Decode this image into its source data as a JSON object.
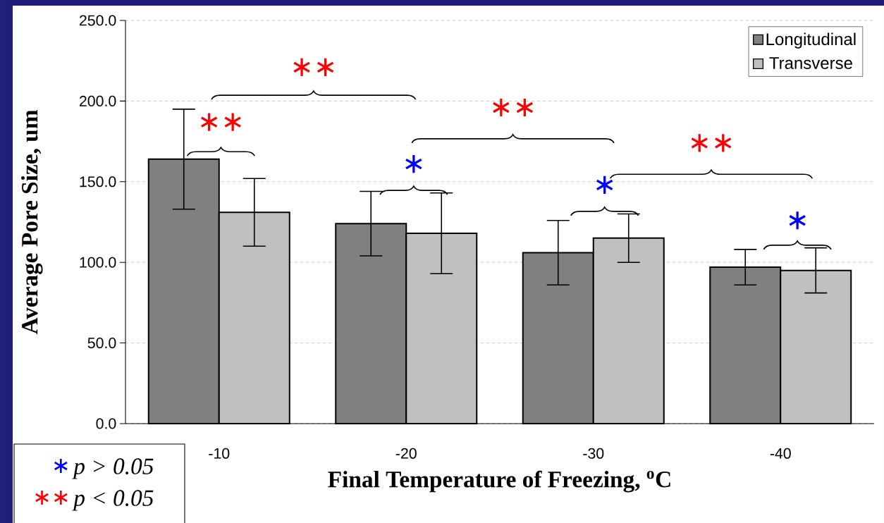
{
  "chart_data": {
    "type": "bar",
    "categories": [
      "-10",
      "-20",
      "-30",
      "-40"
    ],
    "series": [
      {
        "name": "Longitudinal",
        "color": "#808080",
        "values": [
          164,
          124,
          106,
          97
        ],
        "errors": [
          31,
          20,
          20,
          11
        ]
      },
      {
        "name": "Transverse",
        "color": "#c0c0c0",
        "values": [
          131,
          118,
          115,
          95
        ],
        "errors": [
          21,
          25,
          15,
          14
        ]
      }
    ],
    "xlabel": "Final Temperature of Freezing, $^{o}$C",
    "ylabel": "Average Pore Size, um",
    "ylim": [
      0,
      250
    ],
    "yticks": [
      {
        "value": 0,
        "label": "0.0"
      },
      {
        "value": 50,
        "label": "50.0"
      },
      {
        "value": 100,
        "label": "100.0"
      },
      {
        "value": 150,
        "label": "150.0"
      },
      {
        "value": 200,
        "label": "200.0"
      },
      {
        "value": 250,
        "label": "250.0"
      }
    ],
    "grid": "y",
    "legend": "top right",
    "annotations": [
      "∗∗",
      "∗∗",
      "∗",
      "∗∗",
      "∗",
      "∗∗",
      "∗",
      "∗",
      "p > 0.05",
      "∗∗",
      "p < 0.05"
    ]
  }
}
